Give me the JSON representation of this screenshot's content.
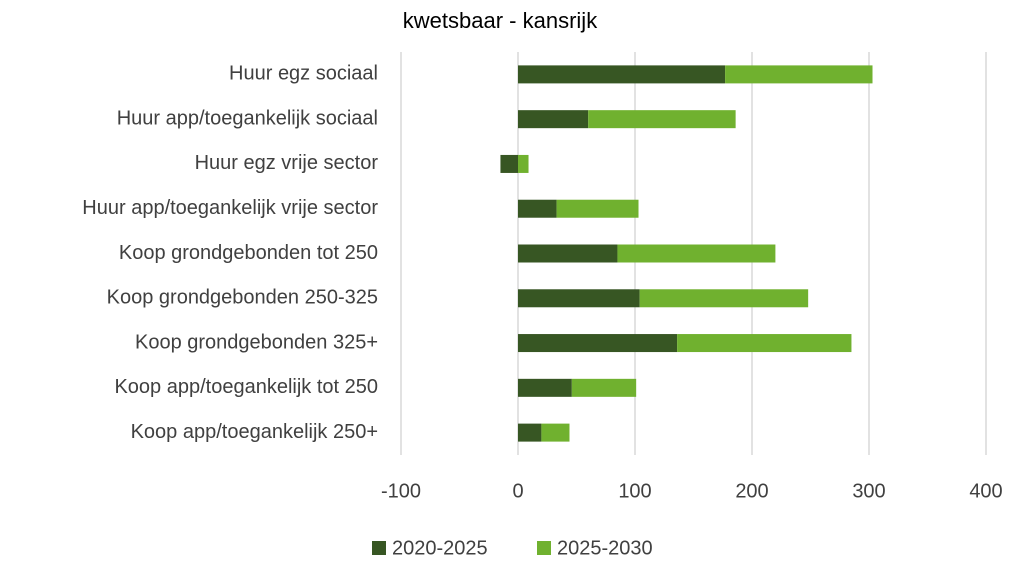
{
  "chart_data": {
    "type": "stacked-bar-horizontal",
    "title": "kwetsbaar   -   kansrijk",
    "categories": [
      "Huur egz sociaal",
      "Huur app/toegankelijk sociaal",
      "Huur egz vrije sector",
      "Huur app/toegankelijk vrije sector",
      "Koop grondgebonden tot 250",
      "Koop grondgebonden 250-325",
      "Koop grondgebonden 325+",
      "Koop app/toegankelijk tot 250",
      "Koop app/toegankelijk 250+"
    ],
    "series": [
      {
        "name": "2020-2025",
        "color": "#375623",
        "values": [
          177,
          60,
          -15,
          33,
          85,
          104,
          136,
          46,
          20
        ]
      },
      {
        "name": "2025-2030",
        "color": "#70b12f",
        "values": [
          126,
          126,
          9,
          70,
          135,
          144,
          149,
          55,
          24
        ]
      }
    ],
    "xlim": [
      -100,
      400
    ],
    "xticks": [
      -100,
      0,
      100,
      200,
      300,
      400
    ],
    "grid": true,
    "legend": "bottom"
  }
}
